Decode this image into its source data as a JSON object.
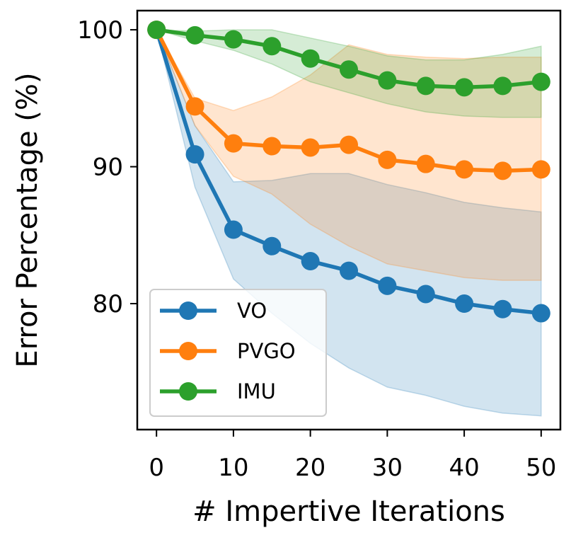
{
  "chart_data": {
    "type": "line",
    "title": "",
    "xlabel": "# Impertive Iterations",
    "ylabel": "Error Percentage (%)",
    "x": [
      0,
      5,
      10,
      15,
      20,
      25,
      30,
      35,
      40,
      45,
      50
    ],
    "xlim": [
      -2.5,
      52.5
    ],
    "ylim": [
      70.8,
      101.4
    ],
    "xticks": [
      0,
      10,
      20,
      30,
      40,
      50
    ],
    "yticks": [
      80,
      90,
      100
    ],
    "xtick_labels": [
      "0",
      "10",
      "20",
      "30",
      "40",
      "50"
    ],
    "ytick_labels": [
      "80",
      "90",
      "100"
    ],
    "grid": false,
    "legend": "lower-left",
    "series": [
      {
        "name": "VO",
        "color": "#1f77b4",
        "values": [
          100,
          90.9,
          85.4,
          84.2,
          83.1,
          82.4,
          81.3,
          80.7,
          80.0,
          79.6,
          79.3
        ],
        "lower": [
          100,
          88.5,
          81.8,
          79.3,
          77.1,
          75.3,
          73.9,
          73.3,
          72.5,
          72.0,
          71.8
        ],
        "upper": [
          100,
          93.0,
          88.9,
          89.0,
          89.5,
          89.5,
          88.7,
          88.1,
          87.4,
          87.0,
          86.7
        ]
      },
      {
        "name": "PVGO",
        "color": "#ff7f0e",
        "values": [
          100,
          94.4,
          91.7,
          91.5,
          91.4,
          91.6,
          90.5,
          90.2,
          89.8,
          89.7,
          89.8
        ],
        "lower": [
          100,
          93.0,
          89.3,
          88.0,
          85.8,
          84.2,
          82.9,
          82.4,
          81.9,
          81.7,
          81.7
        ],
        "upper": [
          100,
          95.0,
          94.1,
          95.1,
          96.7,
          98.9,
          98.2,
          98.0,
          97.9,
          98.0,
          98.0
        ]
      },
      {
        "name": "IMU",
        "color": "#2ca02c",
        "values": [
          100,
          99.6,
          99.3,
          98.8,
          97.9,
          97.1,
          96.3,
          95.9,
          95.8,
          95.9,
          96.2
        ],
        "lower": [
          100,
          99.2,
          98.5,
          97.5,
          96.2,
          95.4,
          94.6,
          94.0,
          93.7,
          93.6,
          93.6
        ],
        "upper": [
          100,
          99.9,
          100.0,
          100.0,
          99.4,
          98.8,
          98.1,
          97.8,
          97.8,
          98.2,
          98.8
        ]
      }
    ]
  }
}
